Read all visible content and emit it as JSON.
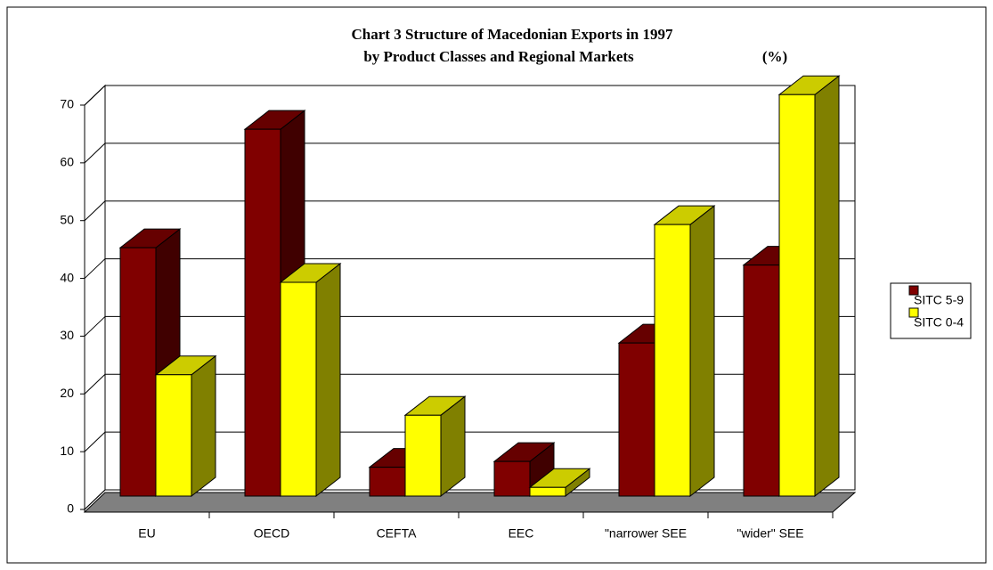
{
  "chart_data": {
    "type": "bar3d",
    "title": "Chart 3    Structure of Macedonian Exports in 1997",
    "subtitle": "by Product Classes and Regional Markets",
    "unit_label": "(%)",
    "categories": [
      "EU",
      "OECD",
      "CEFTA",
      "EEC",
      "\"narrower SEE",
      "\"wider\" SEE"
    ],
    "series": [
      {
        "name": "SITC 5-9",
        "color": "#800000",
        "values": [
          43,
          63.5,
          5,
          6,
          26.5,
          40
        ]
      },
      {
        "name": "SITC 0-4",
        "color": "#ffff00",
        "values": [
          21,
          37,
          14,
          1.5,
          47,
          69.5
        ]
      }
    ],
    "ylim": [
      0,
      70
    ],
    "yticks": [
      0,
      10,
      20,
      30,
      40,
      50,
      60,
      70
    ],
    "grid": true,
    "legend": "right"
  }
}
